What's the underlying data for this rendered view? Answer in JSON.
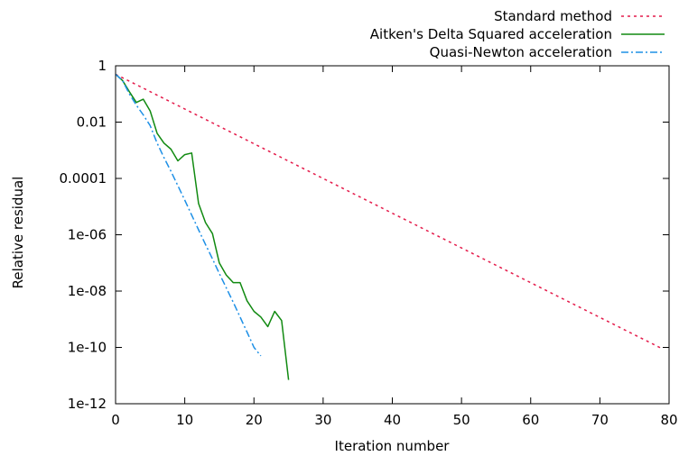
{
  "chart_data": {
    "type": "line",
    "title": "",
    "xlabel": "Iteration number",
    "ylabel": "Relative residual",
    "xlim": [
      0,
      80
    ],
    "ylim": [
      1e-12,
      1
    ],
    "yscale": "log",
    "grid": false,
    "legend_position": "top-right",
    "x_ticks": [
      0,
      10,
      20,
      30,
      40,
      50,
      60,
      70,
      80
    ],
    "x_tick_labels": [
      "0",
      "10",
      "20",
      "30",
      "40",
      "50",
      "60",
      "70",
      "80"
    ],
    "y_ticks": [
      1e-12,
      1e-10,
      1e-08,
      1e-06,
      0.0001,
      0.01,
      1
    ],
    "y_tick_labels": [
      "1e-12",
      "1e-10",
      "1e-08",
      "1e-06",
      "0.0001",
      "0.01",
      "1"
    ],
    "series": [
      {
        "name": "Standard method",
        "color": "#e41a4a",
        "style": "dotted",
        "x": [
          0,
          79
        ],
        "y": [
          0.5,
          9e-11
        ]
      },
      {
        "name": "Aitken's Delta Squared acceleration",
        "color": "#118a11",
        "style": "solid",
        "x": [
          0,
          1,
          2,
          3,
          4,
          5,
          6,
          7,
          8,
          9,
          10,
          11,
          12,
          13,
          14,
          15,
          16,
          17,
          18,
          19,
          20,
          21,
          22,
          23,
          24,
          25
        ],
        "y": [
          0.5,
          0.3,
          0.12,
          0.05,
          0.065,
          0.025,
          0.004,
          0.0018,
          0.0011,
          0.00042,
          0.0007,
          0.0008,
          1.3e-05,
          2.7e-06,
          1.1e-06,
          1e-07,
          3.7e-08,
          2e-08,
          2e-08,
          4.5e-09,
          1.9e-09,
          1.2e-09,
          5.5e-10,
          1.9e-09,
          9e-10,
          7e-12
        ]
      },
      {
        "name": "Quasi-Newton acceleration",
        "color": "#1e90e6",
        "style": "dashdot",
        "x": [
          0,
          1,
          2,
          3,
          4,
          5,
          6,
          7,
          8,
          9,
          10,
          11,
          12,
          13,
          14,
          15,
          16,
          17,
          18,
          19,
          20,
          21
        ],
        "y": [
          0.5,
          0.3,
          0.1,
          0.04,
          0.018,
          0.0075,
          0.0018,
          0.00055,
          0.00018,
          5.5e-05,
          1.7e-05,
          5e-06,
          1.5e-06,
          4.5e-07,
          1.4e-07,
          4.2e-08,
          1.3e-08,
          4e-09,
          1.2e-09,
          3.5e-10,
          1e-10,
          5e-11
        ]
      }
    ]
  }
}
